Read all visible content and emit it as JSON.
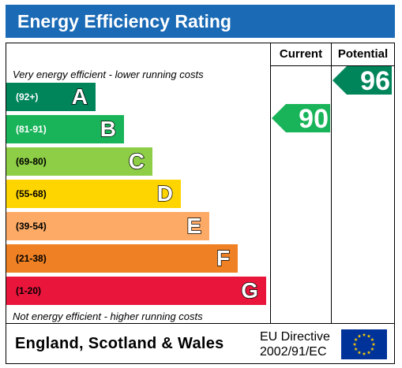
{
  "title": "Energy Efficiency Rating",
  "columns": {
    "current": "Current",
    "potential": "Potential"
  },
  "notes": {
    "top": "Very energy efficient - lower running costs",
    "bottom": "Not energy efficient - higher running costs"
  },
  "footer": {
    "region": "England, Scotland & Wales",
    "directive_line1": "EU Directive",
    "directive_line2": "2002/91/EC",
    "flag_icon": "eu-flag-icon"
  },
  "chart_data": {
    "type": "bar",
    "title": "Energy Efficiency Rating",
    "bands": [
      {
        "range": "(92+)",
        "letter": "A",
        "min": 92,
        "max": 100,
        "color": "#00855a",
        "range_color": "#ffffff"
      },
      {
        "range": "(81-91)",
        "letter": "B",
        "min": 81,
        "max": 91,
        "color": "#19b459",
        "range_color": "#ffffff"
      },
      {
        "range": "(69-80)",
        "letter": "C",
        "min": 69,
        "max": 80,
        "color": "#8dce46",
        "range_color": "#000000"
      },
      {
        "range": "(55-68)",
        "letter": "D",
        "min": 55,
        "max": 68,
        "color": "#ffd500",
        "range_color": "#000000"
      },
      {
        "range": "(39-54)",
        "letter": "E",
        "min": 39,
        "max": 54,
        "color": "#fcaa65",
        "range_color": "#000000"
      },
      {
        "range": "(21-38)",
        "letter": "F",
        "min": 21,
        "max": 38,
        "color": "#ef8023",
        "range_color": "#000000"
      },
      {
        "range": "(1-20)",
        "letter": "G",
        "min": 1,
        "max": 20,
        "color": "#e9153b",
        "range_color": "#000000"
      }
    ],
    "ratings": [
      {
        "name": "Current",
        "value": 90,
        "band": "B",
        "color": "#19b459"
      },
      {
        "name": "Potential",
        "value": 96,
        "band": "A",
        "color": "#00855a"
      }
    ]
  }
}
